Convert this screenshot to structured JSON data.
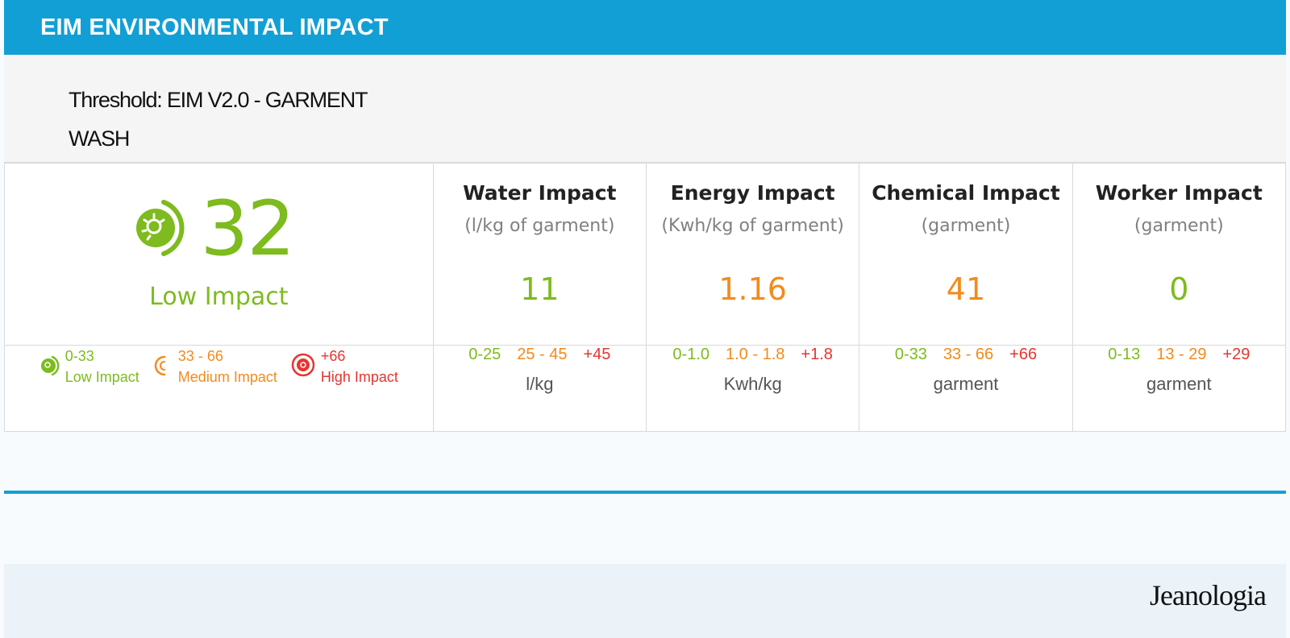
{
  "header": {
    "title": "EIM ENVIRONMENTAL IMPACT"
  },
  "threshold": {
    "line1": "Threshold:  EIM V2.0 - GARMENT",
    "line2": "WASH"
  },
  "score": {
    "value": "32",
    "label": "Low Impact",
    "icon": "leaf-gauge-icon",
    "color": "#7dbb1e"
  },
  "metrics": [
    {
      "title": "Water Impact",
      "unit": "(l/kg of garment)",
      "value": "11",
      "value_color": "green",
      "ranges": [
        "0-25",
        "25 - 45",
        "+45"
      ],
      "range_unit": "l/kg"
    },
    {
      "title": "Energy Impact",
      "unit": "(Kwh/kg of garment)",
      "value": "1.16",
      "value_color": "orange",
      "ranges": [
        "0-1.0",
        "1.0 - 1.8",
        "+1.8"
      ],
      "range_unit": "Kwh/kg"
    },
    {
      "title": "Chemical Impact",
      "unit": "(garment)",
      "value": "41",
      "value_color": "orange",
      "ranges": [
        "0-33",
        "33 - 66",
        "+66"
      ],
      "range_unit": "garment"
    },
    {
      "title": "Worker Impact",
      "unit": "(garment)",
      "value": "0",
      "value_color": "green",
      "ranges": [
        "0-13",
        "13 - 29",
        "+29"
      ],
      "range_unit": "garment"
    }
  ],
  "legend": [
    {
      "range": "0-33",
      "name": "Low Impact",
      "color": "#7dbb1e",
      "icon": "low-impact-icon"
    },
    {
      "range": "33 - 66",
      "name": "Medium Impact",
      "color": "#f28b1c",
      "icon": "medium-impact-icon"
    },
    {
      "range": "+66",
      "name": "High Impact",
      "color": "#e5352f",
      "icon": "high-impact-icon"
    }
  ],
  "colors": {
    "accent": "#129fd5",
    "green": "#7dbb1e",
    "orange": "#f28b1c",
    "red": "#e5352f"
  },
  "footer": {
    "logo": "Jeanologia"
  }
}
